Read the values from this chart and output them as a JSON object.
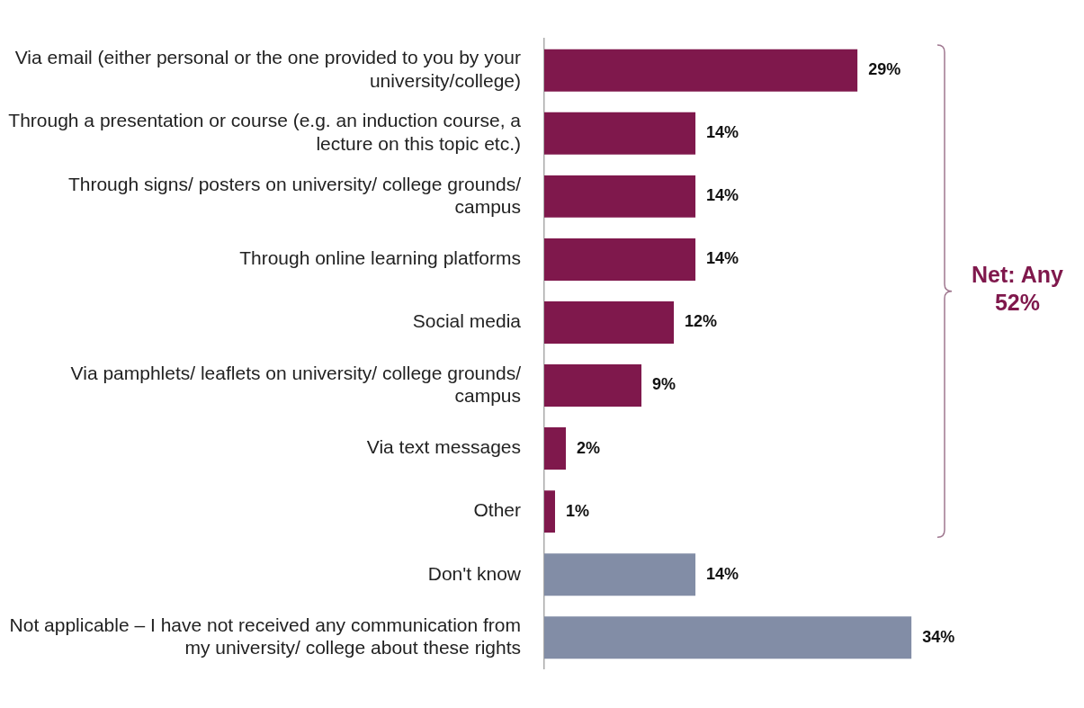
{
  "chart_data": {
    "type": "bar",
    "orientation": "horizontal",
    "categories": [
      "Via email (either personal or the one provided to you by your university/college)",
      "Through a presentation or course (e.g. an induction course, a lecture on this topic etc.)",
      "Through signs/ posters on university/ college grounds/ campus",
      "Through online learning platforms",
      "Social media",
      "Via pamphlets/ leaflets on university/ college grounds/ campus",
      "Via text messages",
      "Other",
      "Don't know",
      "Not applicable – I have not received any communication from my university/ college about these rights"
    ],
    "values": [
      29,
      14,
      14,
      14,
      12,
      9,
      2,
      1,
      14,
      34
    ],
    "value_labels": [
      "29%",
      "14%",
      "14%",
      "14%",
      "12%",
      "9%",
      "2%",
      "1%",
      "14%",
      "34%"
    ],
    "colors": [
      "#7f184c",
      "#7f184c",
      "#7f184c",
      "#7f184c",
      "#7f184c",
      "#7f184c",
      "#7f184c",
      "#7f184c",
      "#828da6",
      "#828da6"
    ],
    "annotations": [
      "Net: Any 52%"
    ],
    "legend": false
  }
}
